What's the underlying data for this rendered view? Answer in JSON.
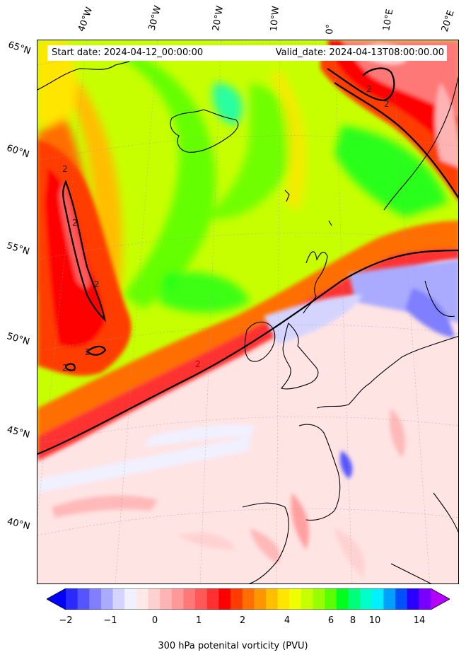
{
  "info": {
    "start_date": "Start date: 2024-04-12_00:00:00",
    "valid_date": "Valid_date: 2024-04-13T08:00:00.00"
  },
  "map": {
    "lon_labels": [
      "40°W",
      "30°W",
      "20°W",
      "10°W",
      "0°",
      "10°E",
      "20°E"
    ],
    "lat_labels": [
      "65°N",
      "60°N",
      "55°N",
      "50°N",
      "45°N",
      "40°N"
    ],
    "contour_label": "2",
    "projection": "conic",
    "region": "North Atlantic and Western Europe"
  },
  "colorbar": {
    "label": "300 hPa potenital vorticity (PVU)",
    "ticks": [
      "−2",
      "−1",
      "0",
      "1",
      "2",
      "4",
      "6",
      "8",
      "10",
      "14"
    ],
    "extend": "both",
    "colors": [
      "#0000ff",
      "#2a2aff",
      "#5555ff",
      "#7f7fff",
      "#aaaaff",
      "#d4d4ff",
      "#f0f0ff",
      "#ffe8e8",
      "#ffd0d0",
      "#ffb4b4",
      "#ff9898",
      "#ff7878",
      "#ff5858",
      "#ff3030",
      "#ff0000",
      "#ff3c00",
      "#ff6e00",
      "#ff9600",
      "#ffbe00",
      "#ffe600",
      "#f0ff00",
      "#c8ff00",
      "#96ff00",
      "#5aff00",
      "#00ff1e",
      "#00ff78",
      "#00ffc8",
      "#00f0ff",
      "#00a0ff",
      "#0050ff",
      "#2800ff",
      "#7800ff",
      "#b400ff"
    ]
  }
}
